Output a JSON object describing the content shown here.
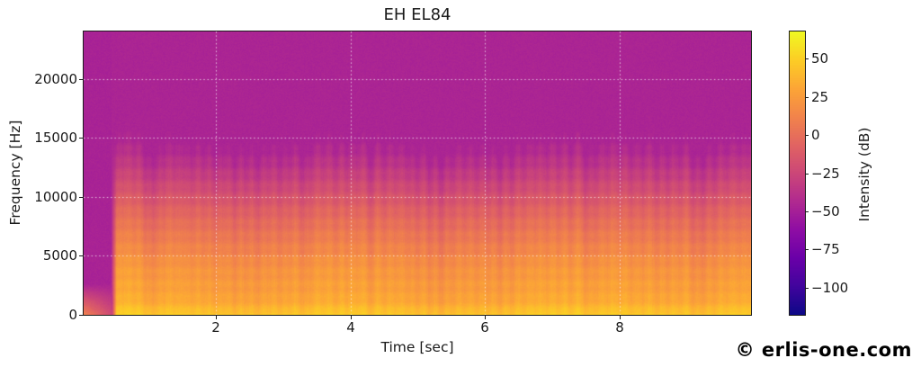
{
  "figure": {
    "title": "EH EL84",
    "watermark": "© erlis-one.com",
    "background_color": "#ffffff",
    "text_color": "#1a1a1a",
    "axis_color": "#1c1c1c"
  },
  "chart_data": {
    "type": "heatmap",
    "subtype": "spectrogram",
    "title": "EH EL84",
    "xlabel": "Time [sec]",
    "ylabel": "Frequency [Hz]",
    "colorbar_label": "Intensity (dB)",
    "xlim": [
      0.03,
      9.96
    ],
    "ylim": [
      0,
      24000
    ],
    "x_ticks": {
      "values": [
        2,
        4,
        6,
        8
      ],
      "labels": [
        "2",
        "4",
        "6",
        "8"
      ]
    },
    "y_ticks": {
      "values": [
        0,
        5000,
        10000,
        15000,
        20000
      ],
      "labels": [
        "0",
        "5000",
        "10000",
        "15000",
        "20000"
      ]
    },
    "colorbar_ticks": {
      "values": [
        50,
        25,
        0,
        -25,
        -50,
        -75,
        -100
      ],
      "labels": [
        "50",
        "25",
        "0",
        "−25",
        "−50",
        "−75",
        "−100"
      ]
    },
    "intensity_range_db": [
      -118,
      68
    ],
    "colormap": "plasma",
    "colormap_stops": [
      "#0d0887",
      "#41049d",
      "#6a00a8",
      "#8f0da4",
      "#b12a90",
      "#cc4778",
      "#e16462",
      "#f2844b",
      "#fca636",
      "#fcce25",
      "#f0f921"
    ],
    "grid": {
      "visible": true,
      "color": "rgba(255,255,255,0.7)",
      "linestyle": "dotted"
    },
    "background_noise_db": -47,
    "signal_start_sec": 0.45,
    "signal_end_sec": 9.96,
    "spectral_profile": {
      "freq_hz": [
        0,
        250,
        800,
        1500,
        2500,
        4000,
        5500,
        7000,
        8500,
        10000,
        11500,
        13000,
        14500,
        15500,
        16500,
        24000
      ],
      "db": [
        58,
        51,
        44,
        38,
        35,
        30,
        22,
        14,
        5,
        -6,
        -17,
        -28,
        -37,
        -42,
        -47,
        -48
      ]
    },
    "harmonic_band_spacing_hz": 1050,
    "note_onset_times_sec": [
      0.48,
      0.62,
      0.78,
      0.95,
      1.08,
      1.22,
      1.38,
      1.52,
      1.65,
      1.82,
      1.98,
      2.12,
      2.28,
      2.45,
      2.62,
      2.78,
      2.95,
      3.1,
      3.28,
      3.42,
      3.6,
      3.78,
      3.95,
      4.1,
      4.3,
      4.5,
      4.68,
      4.85,
      5.0,
      5.18,
      5.35,
      5.52,
      5.7,
      5.88,
      6.05,
      6.22,
      6.4,
      6.58,
      6.75,
      6.92,
      7.1,
      7.28,
      7.5,
      7.65,
      7.82,
      8.0,
      8.18,
      8.35,
      8.55,
      8.72,
      8.9,
      9.1,
      9.25,
      9.42,
      9.6,
      9.78,
      9.92
    ],
    "note_onset_strengths": [
      0.55,
      0.35,
      0.45,
      0.8,
      0.9,
      0.6,
      0.5,
      0.45,
      0.55,
      0.5,
      0.6,
      0.45,
      0.75,
      0.65,
      0.8,
      0.55,
      0.7,
      0.6,
      0.85,
      0.6,
      0.5,
      0.65,
      0.55,
      0.5,
      0.9,
      0.6,
      0.5,
      0.55,
      0.65,
      0.8,
      0.9,
      0.6,
      0.5,
      0.55,
      0.6,
      0.85,
      0.75,
      0.6,
      0.5,
      0.55,
      0.6,
      0.7,
      0.85,
      0.7,
      0.55,
      0.5,
      0.6,
      0.55,
      0.65,
      0.6,
      0.55,
      0.8,
      0.9,
      0.7,
      0.55,
      0.5,
      0.45
    ]
  }
}
